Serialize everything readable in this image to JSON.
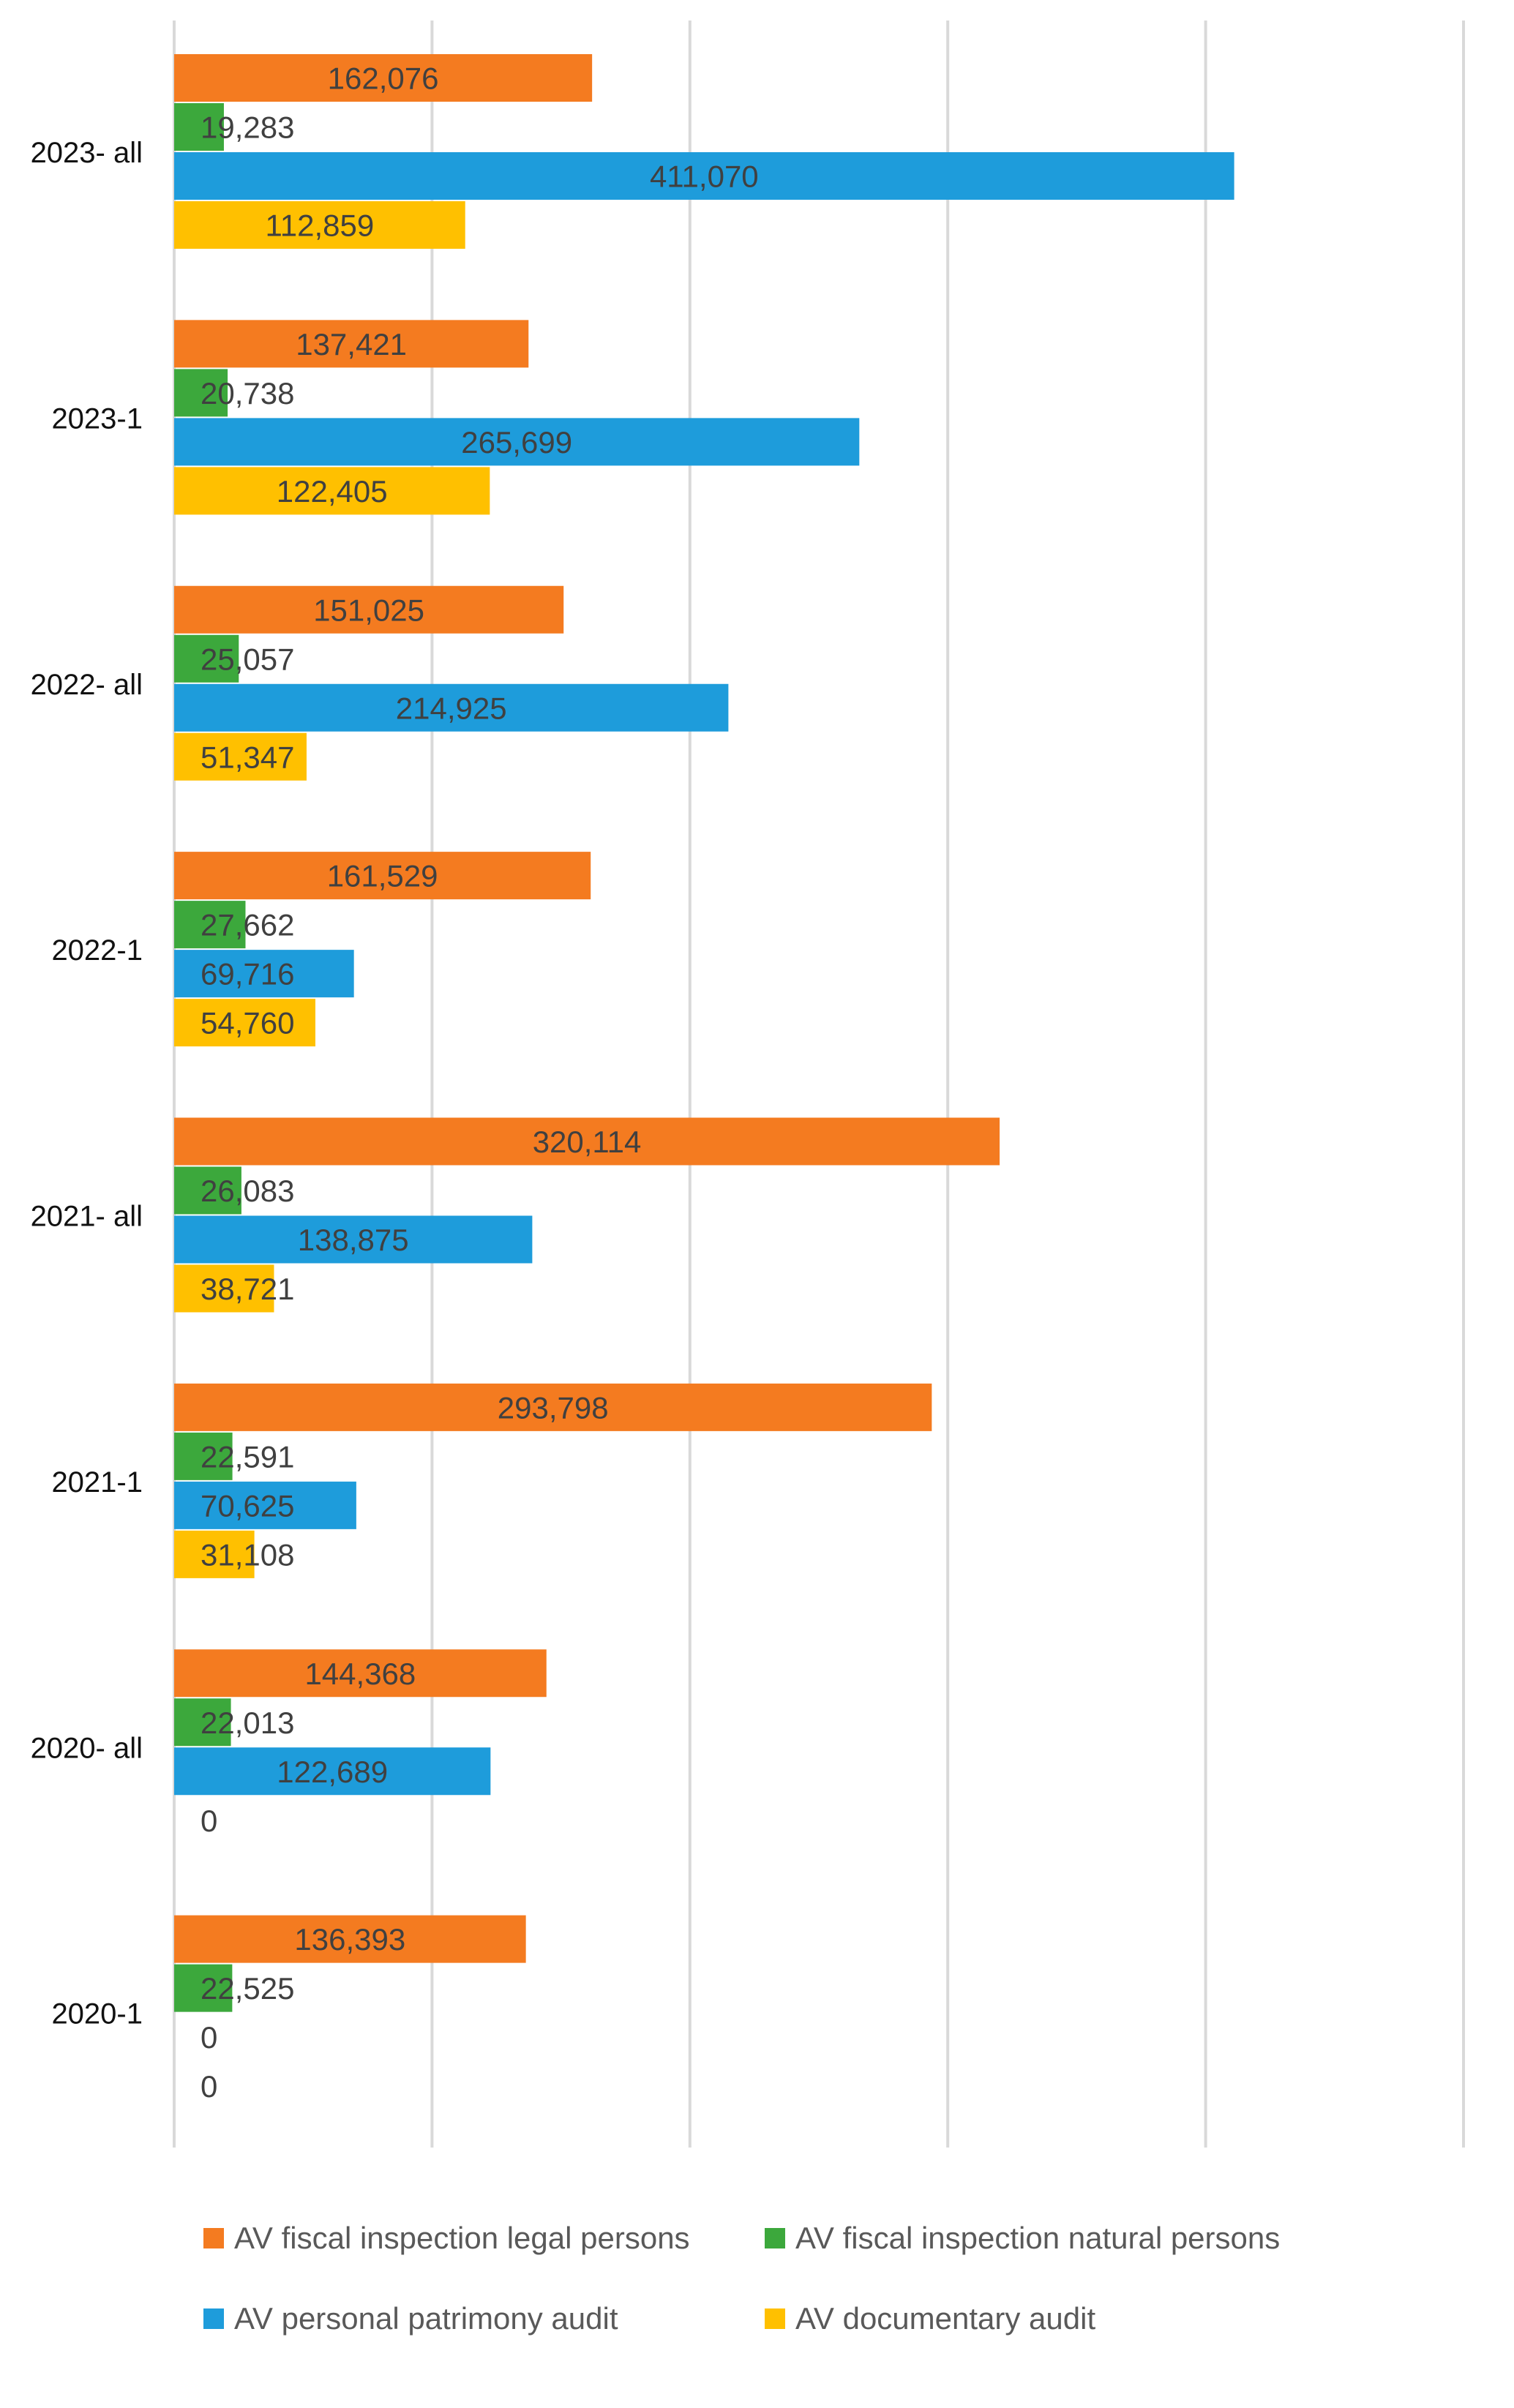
{
  "chart_data": {
    "type": "bar",
    "orientation": "horizontal",
    "title": "",
    "xlabel": "",
    "ylabel": "",
    "xlim": [
      0,
      500000
    ],
    "grid": true,
    "legend_position": "bottom",
    "categories": [
      "2023- all",
      "2023-1",
      "2022- all",
      "2022-1",
      "2021- all",
      "2021-1",
      "2020- all",
      "2020-1"
    ],
    "series": [
      {
        "name": "AV fiscal inspection legal persons",
        "color": "#F47B20",
        "values": [
          162076,
          137421,
          151025,
          161529,
          320114,
          293798,
          144368,
          136393
        ],
        "labels": [
          "162,076",
          "137,421",
          "151,025",
          "161,529",
          "320,114",
          "293,798",
          "144,368",
          "136,393"
        ]
      },
      {
        "name": "AV fiscal inspection natural persons",
        "color": "#3CA83C",
        "values": [
          19283,
          20738,
          25057,
          27662,
          26083,
          22591,
          22013,
          22525
        ],
        "labels": [
          "19,283",
          "20,738",
          "25,057",
          "27,662",
          "26,083",
          "22,591",
          "22,013",
          "22,525"
        ]
      },
      {
        "name": "AV personal patrimony audit",
        "color": "#1E9CDB",
        "values": [
          411070,
          265699,
          214925,
          69716,
          138875,
          70625,
          122689,
          0
        ],
        "labels": [
          "411,070",
          "265,699",
          "214,925",
          "69,716",
          "138,875",
          "70,625",
          "122,689",
          "0"
        ]
      },
      {
        "name": "AV documentary audit",
        "color": "#FFC000",
        "values": [
          112859,
          122405,
          51347,
          54760,
          38721,
          31108,
          0,
          0
        ],
        "labels": [
          "112,859",
          "122,405",
          "51,347",
          "54,760",
          "38,721",
          "31,108",
          "0",
          "0"
        ]
      }
    ]
  }
}
